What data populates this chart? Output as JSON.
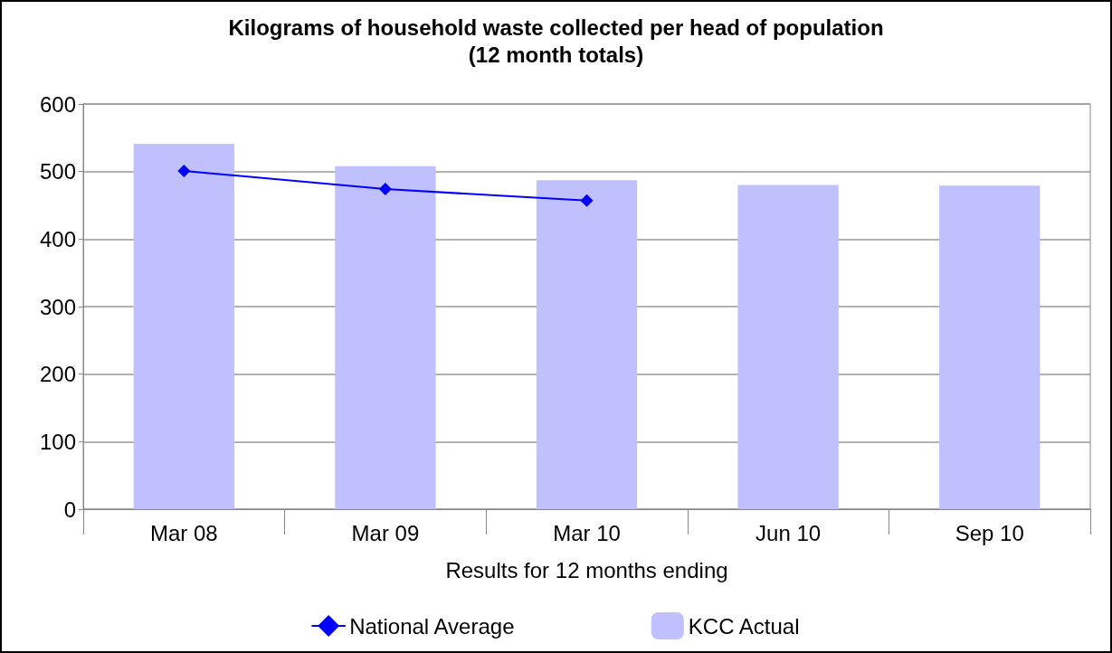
{
  "chart_data": {
    "type": "bar",
    "title": "Kilograms of household waste collected per head of population\n(12 month totals)",
    "xlabel": "Results for 12 months ending",
    "categories": [
      "Mar 08",
      "Mar 09",
      "Mar 10",
      "Jun 10",
      "Sep 10"
    ],
    "series": [
      {
        "name": "National Average",
        "type": "line",
        "color": "#0000ff",
        "values": [
          501,
          474,
          457,
          null,
          null
        ],
        "marker": "diamond"
      },
      {
        "name": "KCC Actual",
        "color": "#c0c0ff",
        "values": [
          541,
          508,
          487,
          480,
          479
        ]
      }
    ],
    "ylim": [
      0,
      600
    ],
    "yticks": [
      0,
      100,
      200,
      300,
      400,
      500,
      600
    ],
    "grid": "y",
    "legend": "bottom"
  }
}
